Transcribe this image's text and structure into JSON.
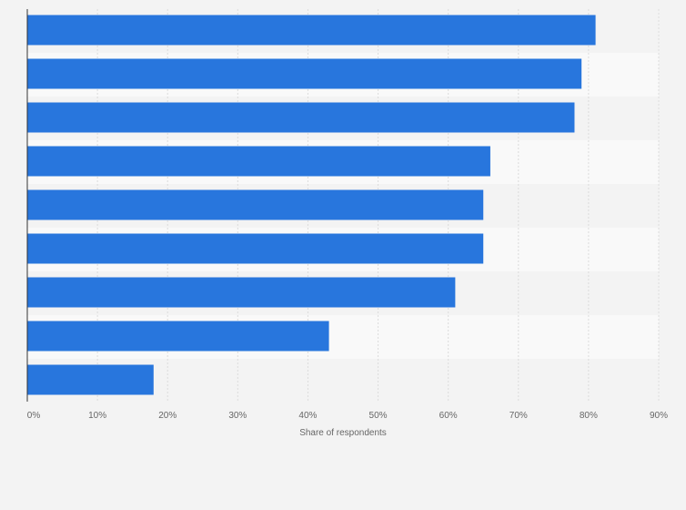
{
  "chart_data": {
    "type": "bar",
    "orientation": "horizontal",
    "categories": [
      "",
      "",
      "",
      "",
      "",
      "",
      "",
      "",
      ""
    ],
    "values": [
      81,
      79,
      78,
      66,
      65,
      65,
      61,
      43,
      18
    ],
    "xlabel": "Share of respondents",
    "ylabel": "",
    "xlim": [
      0,
      90
    ],
    "x_ticks": [
      "0%",
      "10%",
      "20%",
      "30%",
      "40%",
      "50%",
      "60%",
      "70%",
      "80%",
      "90%"
    ],
    "grid": true,
    "legend": "none",
    "bar_color": "#2876dd",
    "band_colors": [
      "#f3f3f3",
      "#f9f9f9"
    ],
    "grid_color": "#dcdcdc",
    "axis_color": "#333333",
    "background": "#f3f3f3"
  }
}
